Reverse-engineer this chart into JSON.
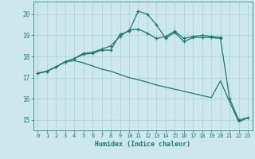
{
  "xlabel": "Humidex (Indice chaleur)",
  "bg_color": "#cde8ec",
  "grid_color": "#aed4d8",
  "line_color": "#1a7a72",
  "xlim": [
    -0.5,
    23.5
  ],
  "ylim": [
    14.5,
    20.6
  ],
  "yticks": [
    15,
    16,
    17,
    18,
    19,
    20
  ],
  "xticks": [
    0,
    1,
    2,
    3,
    4,
    5,
    6,
    7,
    8,
    9,
    10,
    11,
    12,
    13,
    14,
    15,
    16,
    17,
    18,
    19,
    20,
    21,
    22,
    23
  ],
  "line1_x": [
    0,
    1,
    2,
    3,
    4,
    5,
    6,
    7,
    8,
    9,
    10,
    11,
    12,
    13,
    14,
    15,
    16,
    17,
    18,
    19,
    20,
    21,
    22,
    23
  ],
  "line1_y": [
    17.2,
    17.3,
    17.5,
    17.75,
    17.9,
    18.1,
    18.15,
    18.3,
    18.3,
    19.05,
    19.2,
    20.15,
    20.0,
    19.5,
    18.85,
    19.15,
    18.7,
    18.9,
    18.9,
    18.9,
    18.85,
    16.0,
    15.0,
    15.1
  ],
  "line2_x": [
    0,
    1,
    2,
    3,
    4,
    5,
    6,
    7,
    8,
    9,
    10,
    11,
    12,
    13,
    14,
    15,
    16,
    17,
    18,
    19,
    20
  ],
  "line2_y": [
    17.2,
    17.3,
    17.5,
    17.75,
    17.9,
    18.15,
    18.2,
    18.35,
    18.5,
    18.95,
    19.25,
    19.3,
    19.1,
    18.85,
    18.95,
    19.2,
    18.85,
    18.95,
    19.0,
    18.95,
    18.9
  ],
  "line3_x": [
    0,
    1,
    2,
    3,
    4,
    5,
    6,
    7,
    8,
    9,
    10,
    11,
    12,
    13,
    14,
    15,
    16,
    17,
    18,
    19,
    20,
    21,
    22,
    23
  ],
  "line3_y": [
    17.2,
    17.3,
    17.5,
    17.75,
    17.8,
    17.7,
    17.55,
    17.4,
    17.3,
    17.15,
    17.0,
    16.9,
    16.78,
    16.65,
    16.55,
    16.45,
    16.35,
    16.25,
    16.15,
    16.05,
    16.85,
    15.85,
    14.9,
    15.1
  ]
}
